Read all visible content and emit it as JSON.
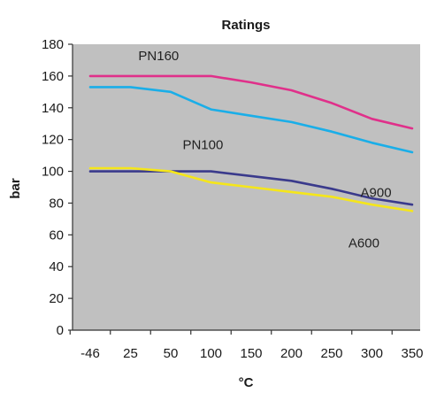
{
  "chart_data": {
    "type": "line",
    "title": "Ratings",
    "xlabel": "°C",
    "ylabel": "bar",
    "categories": [
      "-46",
      "25",
      "50",
      "100",
      "150",
      "200",
      "250",
      "300",
      "350"
    ],
    "ylim": [
      0,
      180
    ],
    "yticks": [
      0,
      20,
      40,
      60,
      80,
      100,
      120,
      140,
      160,
      180
    ],
    "grid": false,
    "plot_background": "#c0c0c0",
    "series": [
      {
        "name": "PN160",
        "color": "#e0308a",
        "values": [
          160,
          160,
          160,
          160,
          156,
          151,
          143,
          133,
          127
        ]
      },
      {
        "name": "A900",
        "color": "#1aaee8",
        "values": [
          153,
          153,
          150,
          139,
          135,
          131,
          125,
          118,
          112
        ]
      },
      {
        "name": "PN100",
        "color": "#3a3a8c",
        "values": [
          100,
          100,
          100,
          100,
          97,
          94,
          89,
          83,
          79
        ]
      },
      {
        "name": "A600",
        "color": "#f5e61a",
        "values": [
          102,
          102,
          100,
          93,
          90,
          87,
          84,
          79,
          75
        ]
      }
    ]
  }
}
